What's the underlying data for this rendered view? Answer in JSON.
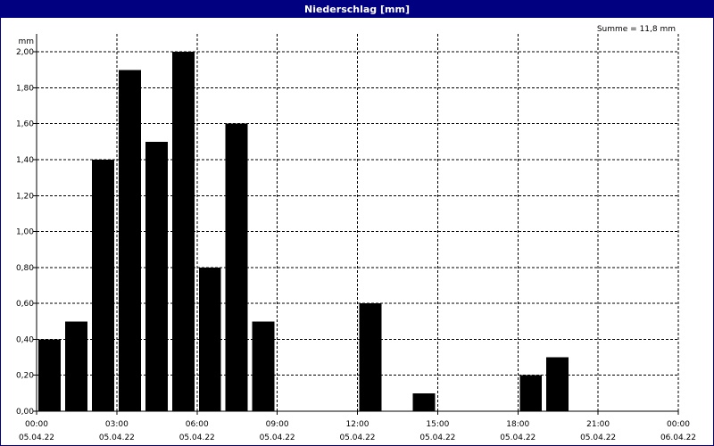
{
  "window": {
    "title": "Niederschlag [mm]"
  },
  "chart_data": {
    "type": "bar",
    "title": "Niederschlag [mm]",
    "ylabel": "mm",
    "annotation": "Summe = 11,8 mm",
    "ylim": [
      0,
      2.1
    ],
    "y_ticks": [
      {
        "value": 0.0,
        "label": "0,00"
      },
      {
        "value": 0.2,
        "label": "0,20"
      },
      {
        "value": 0.4,
        "label": "0,40"
      },
      {
        "value": 0.6,
        "label": "0,60"
      },
      {
        "value": 0.8,
        "label": "0,80"
      },
      {
        "value": 1.0,
        "label": "1,00"
      },
      {
        "value": 1.2,
        "label": "1,20"
      },
      {
        "value": 1.4,
        "label": "1,40"
      },
      {
        "value": 1.6,
        "label": "1,60"
      },
      {
        "value": 1.8,
        "label": "1,80"
      },
      {
        "value": 2.0,
        "label": "2,00"
      }
    ],
    "x_ticks": [
      {
        "hour": 0,
        "time": "00:00",
        "date": "05.04.22"
      },
      {
        "hour": 3,
        "time": "03:00",
        "date": "05.04.22"
      },
      {
        "hour": 6,
        "time": "06:00",
        "date": "05.04.22"
      },
      {
        "hour": 9,
        "time": "09:00",
        "date": "05.04.22"
      },
      {
        "hour": 12,
        "time": "12:00",
        "date": "05.04.22"
      },
      {
        "hour": 15,
        "time": "15:00",
        "date": "05.04.22"
      },
      {
        "hour": 18,
        "time": "18:00",
        "date": "05.04.22"
      },
      {
        "hour": 21,
        "time": "21:00",
        "date": "05.04.22"
      },
      {
        "hour": 24,
        "time": "00:00",
        "date": "06.04.22"
      }
    ],
    "xlim": [
      0,
      24
    ],
    "grid": true,
    "bar_color": "#000000",
    "bars": [
      {
        "hour": 0,
        "value": 0.4
      },
      {
        "hour": 1,
        "value": 0.5
      },
      {
        "hour": 2,
        "value": 1.4
      },
      {
        "hour": 3,
        "value": 1.9
      },
      {
        "hour": 4,
        "value": 1.5
      },
      {
        "hour": 5,
        "value": 2.0
      },
      {
        "hour": 6,
        "value": 0.8
      },
      {
        "hour": 7,
        "value": 1.6
      },
      {
        "hour": 8,
        "value": 0.5
      },
      {
        "hour": 9,
        "value": 0.0
      },
      {
        "hour": 10,
        "value": 0.0
      },
      {
        "hour": 11,
        "value": 0.0
      },
      {
        "hour": 12,
        "value": 0.6
      },
      {
        "hour": 13,
        "value": 0.0
      },
      {
        "hour": 14,
        "value": 0.1
      },
      {
        "hour": 15,
        "value": 0.0
      },
      {
        "hour": 16,
        "value": 0.0
      },
      {
        "hour": 17,
        "value": 0.0
      },
      {
        "hour": 18,
        "value": 0.2
      },
      {
        "hour": 19,
        "value": 0.3
      },
      {
        "hour": 20,
        "value": 0.0
      },
      {
        "hour": 21,
        "value": 0.0
      },
      {
        "hour": 22,
        "value": 0.0
      },
      {
        "hour": 23,
        "value": 0.0
      }
    ]
  }
}
